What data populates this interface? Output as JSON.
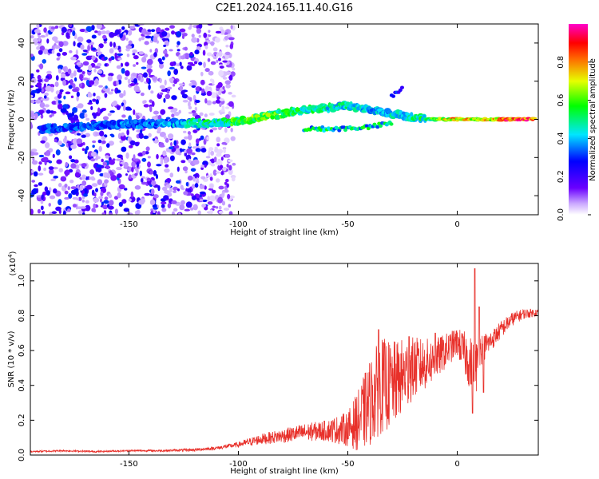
{
  "figure_title": "C2E1.2024.165.11.40.G16",
  "chart_data": [
    {
      "type": "heatmap",
      "title": "C2E1.2024.165.11.40.G16",
      "xlabel": "Height of straight line (km)",
      "ylabel": "Frequency (Hz)",
      "xlim": [
        -195,
        37
      ],
      "ylim": [
        -50,
        50
      ],
      "x_ticks": [
        -150,
        -100,
        -50,
        0
      ],
      "x_tick_labels": [
        "-150",
        "-100",
        "-50",
        "0"
      ],
      "y_ticks": [
        -40,
        -20,
        0,
        20,
        40
      ],
      "y_tick_labels": [
        "-40",
        "-20",
        "0",
        "20",
        "40"
      ],
      "colorbar": {
        "label": "Normalized spectral amplitude",
        "range": [
          0,
          1
        ],
        "ticks": [
          0,
          0.2,
          0.4,
          0.6,
          0.8
        ],
        "tick_labels": [
          "0.0",
          "0.2",
          "0.4",
          "0.6",
          "0.8"
        ],
        "colormap": [
          "#ffffff",
          "#6a00ff",
          "#0000ff",
          "#00ffff",
          "#00ff00",
          "#ffff00",
          "#ff0000",
          "#ff00ff"
        ]
      },
      "noise_region_x": [
        -195,
        -102
      ],
      "ridge": [
        {
          "x": -190,
          "f": -5,
          "amp": 0.35
        },
        {
          "x": -160,
          "f": -3,
          "amp": 0.35
        },
        {
          "x": -130,
          "f": -2,
          "amp": 0.4
        },
        {
          "x": -120,
          "f": -2,
          "amp": 0.5
        },
        {
          "x": -110,
          "f": -2,
          "amp": 0.55
        },
        {
          "x": -100,
          "f": -1,
          "amp": 0.6
        },
        {
          "x": -90,
          "f": 1,
          "amp": 0.65
        },
        {
          "x": -80,
          "f": 3,
          "amp": 0.6
        },
        {
          "x": -70,
          "f": 5,
          "amp": 0.55
        },
        {
          "x": -60,
          "f": 6,
          "amp": 0.5
        },
        {
          "x": -50,
          "f": 7,
          "amp": 0.5
        },
        {
          "x": -40,
          "f": 5,
          "amp": 0.45
        },
        {
          "x": -30,
          "f": 3,
          "amp": 0.45
        },
        {
          "x": -20,
          "f": 1,
          "amp": 0.5
        },
        {
          "x": -10,
          "f": 0,
          "amp": 0.6
        },
        {
          "x": 0,
          "f": 0,
          "amp": 0.85
        },
        {
          "x": 10,
          "f": 0,
          "amp": 0.7
        },
        {
          "x": 20,
          "f": 0,
          "amp": 0.9
        },
        {
          "x": 35,
          "f": 0,
          "amp": 0.9
        }
      ],
      "lower_branch": [
        {
          "x": -70,
          "f": -5
        },
        {
          "x": -55,
          "f": -5
        },
        {
          "x": -40,
          "f": -4
        },
        {
          "x": -30,
          "f": -2
        }
      ],
      "upper_branch": [
        {
          "x": -30,
          "f": 12
        },
        {
          "x": -25,
          "f": 16
        }
      ]
    },
    {
      "type": "line",
      "xlabel": "Height of straight line (km)",
      "ylabel": "SNR (10 * v/v)",
      "y_exponent_label": "(x10",
      "y_exponent_power": "4",
      "y_exponent_close": ")",
      "xlim": [
        -195,
        37
      ],
      "ylim": [
        0,
        1.1
      ],
      "x_ticks": [
        -150,
        -100,
        -50,
        0
      ],
      "x_tick_labels": [
        "-150",
        "-100",
        "-50",
        "0"
      ],
      "y_ticks": [
        0,
        0.2,
        0.4,
        0.6,
        0.8,
        1.0
      ],
      "y_tick_labels": [
        "0.0",
        "0.2",
        "0.4",
        "0.6",
        "0.8",
        "1.0"
      ],
      "color": "#e8302a",
      "series": [
        {
          "x": [
            -195,
            -180,
            -165,
            -150,
            -135,
            -120,
            -110,
            -100,
            -90,
            -80,
            -70,
            -60,
            -50,
            -45,
            -40,
            -35,
            -30,
            -25,
            -20,
            -15,
            -10,
            -5,
            0,
            5,
            8,
            10,
            15,
            20,
            25,
            30,
            37
          ],
          "y": [
            0.02,
            0.025,
            0.02,
            0.025,
            0.025,
            0.03,
            0.04,
            0.06,
            0.09,
            0.11,
            0.13,
            0.14,
            0.15,
            0.2,
            0.3,
            0.4,
            0.4,
            0.45,
            0.5,
            0.52,
            0.55,
            0.6,
            0.65,
            0.55,
            0.45,
            0.6,
            0.65,
            0.72,
            0.78,
            0.81,
            0.82
          ],
          "noise": [
            0.005,
            0.005,
            0.005,
            0.005,
            0.006,
            0.008,
            0.01,
            0.015,
            0.03,
            0.04,
            0.05,
            0.06,
            0.1,
            0.18,
            0.25,
            0.28,
            0.25,
            0.22,
            0.18,
            0.15,
            0.12,
            0.1,
            0.08,
            0.15,
            0.2,
            0.1,
            0.06,
            0.05,
            0.04,
            0.03,
            0.02
          ]
        }
      ],
      "peaks": [
        {
          "x": 8,
          "y": 1.07
        },
        {
          "x": -36,
          "y": 0.72
        },
        {
          "x": -22,
          "y": 0.68
        },
        {
          "x": -10,
          "y": 0.7
        },
        {
          "x": 10,
          "y": 0.85
        }
      ],
      "dips": [
        {
          "x": 7,
          "y": 0.24
        },
        {
          "x": 12,
          "y": 0.36
        }
      ]
    }
  ]
}
